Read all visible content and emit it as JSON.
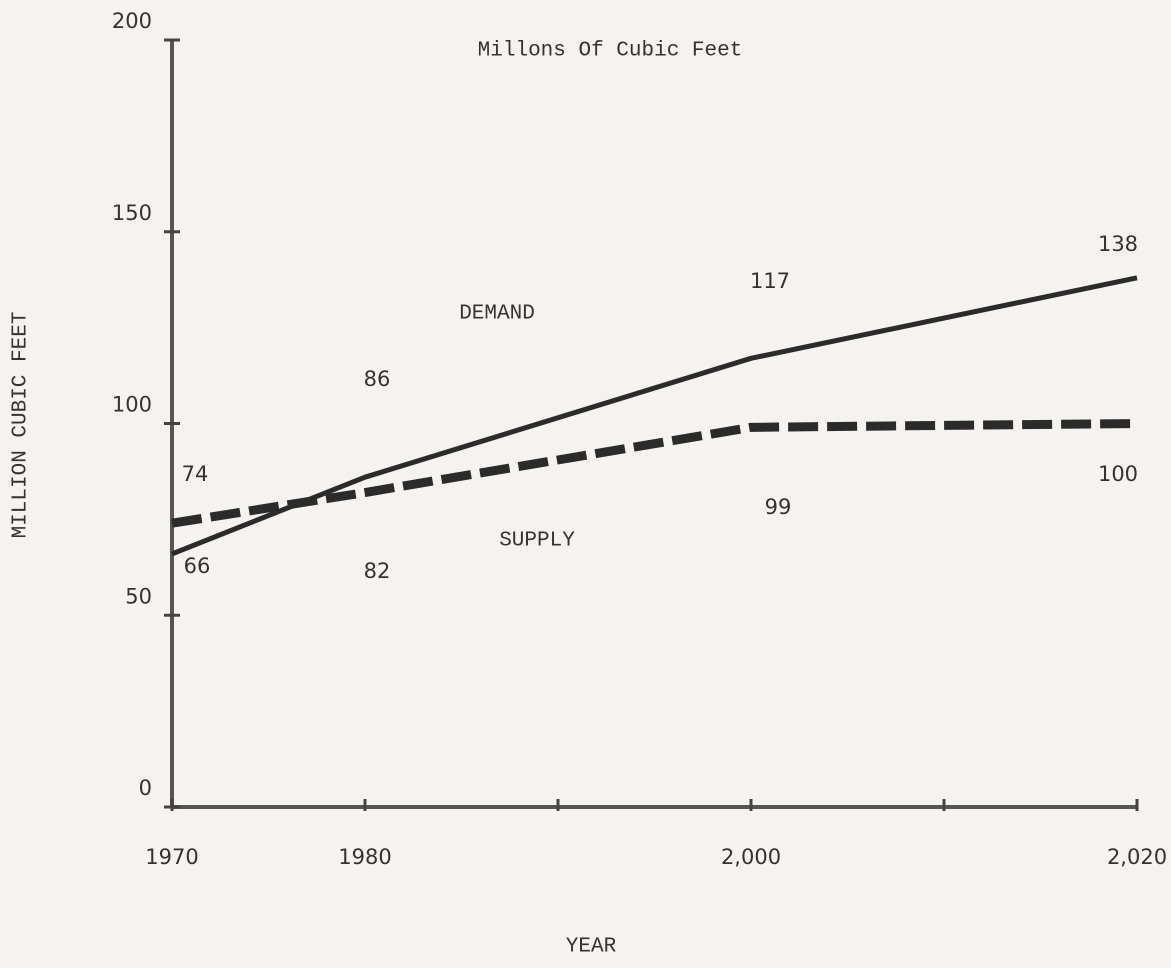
{
  "chart_data": {
    "type": "line",
    "title": "Millons Of Cubic Feet",
    "x_label": "YEAR",
    "y_label": "MILLION CUBIC FEET",
    "x": [
      1970,
      1980,
      2000,
      2020
    ],
    "series": [
      {
        "name": "DEMAND",
        "color": "#2b2b2b",
        "style": "solid",
        "values": [
          66,
          86,
          117,
          138
        ]
      },
      {
        "name": "SUPPLY",
        "color": "#2b2b2b",
        "style": "dashed",
        "values": [
          74,
          82,
          99,
          100
        ]
      }
    ],
    "xlim": [
      1970,
      2020
    ],
    "xticks": [
      {
        "value": 1970,
        "label": "1970"
      },
      {
        "value": 1980,
        "label": "1980"
      },
      {
        "value": 2000,
        "label": "2,000"
      },
      {
        "value": 2020,
        "label": "2,020"
      }
    ],
    "xminor_ticks": [
      1990,
      2010
    ],
    "ylim": [
      0,
      200
    ],
    "yticks": [
      0,
      50,
      100,
      150,
      200
    ],
    "grid": false
  }
}
